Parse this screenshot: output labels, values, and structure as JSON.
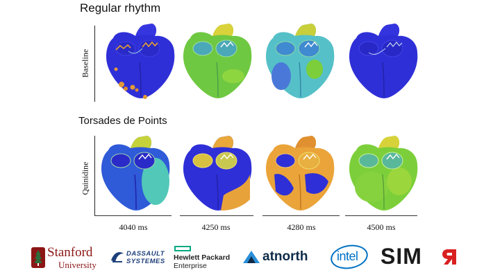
{
  "sections": {
    "regular": "Regular rhythm",
    "torsades": "Torsades de Points"
  },
  "rows": {
    "baseline": "Baseline",
    "quinidine": "Quinidine"
  },
  "time_ticks": [
    "4040 ms",
    "4250 ms",
    "4280 ms",
    "4500 ms"
  ],
  "colors": {
    "blue": "#2f2fd8",
    "green": "#7ccf3a",
    "cyan": "#52c8c2",
    "yellow": "#e8d63a",
    "orange": "#eaa43a"
  },
  "logos": {
    "stanford_name": "Stanford",
    "stanford_sub": "University",
    "dassault_line1": "DASSAULT",
    "dassault_line2": "SYSTEMES",
    "hpe_line1": "Hewlett Packard",
    "hpe_line2": "Enterprise",
    "atnorth": "atnorth",
    "intel": "intel",
    "simr": "SIM"
  }
}
